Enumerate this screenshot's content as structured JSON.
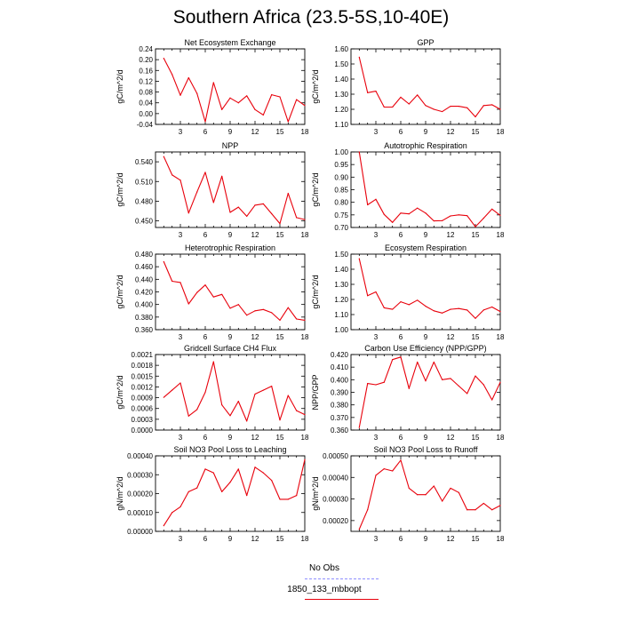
{
  "title": "Southern Africa (23.5-5S,10-40E)",
  "colors": {
    "model": "#e8000b",
    "obs": "#8f8fff",
    "axis": "#000000"
  },
  "legend": {
    "items": [
      {
        "label": "No Obs",
        "color": "#8f8fff",
        "style": "dashed"
      },
      {
        "label": "1850_133_mbbopt",
        "color": "#e8000b",
        "style": "solid"
      }
    ]
  },
  "chart_data": [
    {
      "type": "line",
      "title": "Net Ecosystem Exchange",
      "ylabel": "gC/m^2/d",
      "xlim": [
        0,
        18
      ],
      "xticks": [
        3,
        6,
        9,
        12,
        15,
        18
      ],
      "ylim": [
        -0.04,
        0.24
      ],
      "yticks": [
        "-0.04",
        "0.00",
        "0.04",
        "0.08",
        "0.12",
        "0.16",
        "0.20",
        "0.24"
      ],
      "series": [
        {
          "x": [
            1,
            2,
            3,
            4,
            5,
            6,
            7,
            8,
            9,
            10,
            11,
            12,
            13,
            14,
            15,
            16,
            17,
            18
          ],
          "y": [
            0.205,
            0.145,
            0.068,
            0.133,
            0.075,
            -0.03,
            0.115,
            0.015,
            0.058,
            0.04,
            0.066,
            0.015,
            -0.005,
            0.07,
            0.062,
            -0.03,
            0.052,
            0.03
          ]
        }
      ]
    },
    {
      "type": "line",
      "title": "GPP",
      "ylabel": "gC/m^2/d",
      "xlim": [
        0,
        18
      ],
      "xticks": [
        3,
        6,
        9,
        12,
        15,
        18
      ],
      "ylim": [
        1.1,
        1.6
      ],
      "yticks": [
        "1.10",
        "1.20",
        "1.30",
        "1.40",
        "1.50",
        "1.60"
      ],
      "series": [
        {
          "x": [
            1,
            2,
            3,
            4,
            5,
            6,
            7,
            8,
            9,
            10,
            11,
            12,
            13,
            14,
            15,
            16,
            17,
            18
          ],
          "y": [
            1.545,
            1.31,
            1.32,
            1.215,
            1.215,
            1.28,
            1.235,
            1.295,
            1.225,
            1.2,
            1.185,
            1.22,
            1.22,
            1.21,
            1.15,
            1.225,
            1.23,
            1.2
          ]
        }
      ]
    },
    {
      "type": "line",
      "title": "NPP",
      "ylabel": "gC/m^2/d",
      "xlim": [
        0,
        18
      ],
      "xticks": [
        3,
        6,
        9,
        12,
        15,
        18
      ],
      "ylim": [
        0.44,
        0.555
      ],
      "yticks": [
        "0.450",
        "0.480",
        "0.510",
        "0.540"
      ],
      "series": [
        {
          "x": [
            1,
            2,
            3,
            4,
            5,
            6,
            7,
            8,
            9,
            10,
            11,
            12,
            13,
            14,
            15,
            16,
            17,
            18
          ],
          "y": [
            0.548,
            0.52,
            0.512,
            0.462,
            0.494,
            0.524,
            0.478,
            0.518,
            0.463,
            0.471,
            0.457,
            0.474,
            0.476,
            0.461,
            0.446,
            0.492,
            0.455,
            0.452
          ]
        }
      ]
    },
    {
      "type": "line",
      "title": "Autotrophic Respiration",
      "ylabel": "gC/m^2/d",
      "xlim": [
        0,
        18
      ],
      "xticks": [
        3,
        6,
        9,
        12,
        15,
        18
      ],
      "ylim": [
        0.7,
        1.0
      ],
      "yticks": [
        "0.70",
        "0.75",
        "0.80",
        "0.85",
        "0.90",
        "0.95",
        "1.00"
      ],
      "series": [
        {
          "x": [
            1,
            2,
            3,
            4,
            5,
            6,
            7,
            8,
            9,
            10,
            11,
            12,
            13,
            14,
            15,
            16,
            17,
            18
          ],
          "y": [
            1.0,
            0.79,
            0.812,
            0.752,
            0.72,
            0.757,
            0.754,
            0.777,
            0.757,
            0.726,
            0.727,
            0.746,
            0.75,
            0.747,
            0.703,
            0.737,
            0.773,
            0.748
          ]
        }
      ]
    },
    {
      "type": "line",
      "title": "Heterotrophic Respiration",
      "ylabel": "gC/m^2/d",
      "xlim": [
        0,
        18
      ],
      "xticks": [
        3,
        6,
        9,
        12,
        15,
        18
      ],
      "ylim": [
        0.36,
        0.48
      ],
      "yticks": [
        "0.360",
        "0.380",
        "0.400",
        "0.420",
        "0.440",
        "0.460",
        "0.480"
      ],
      "series": [
        {
          "x": [
            1,
            2,
            3,
            4,
            5,
            6,
            7,
            8,
            9,
            10,
            11,
            12,
            13,
            14,
            15,
            16,
            17,
            18
          ],
          "y": [
            0.468,
            0.437,
            0.435,
            0.401,
            0.419,
            0.431,
            0.412,
            0.416,
            0.394,
            0.4,
            0.383,
            0.39,
            0.392,
            0.387,
            0.375,
            0.395,
            0.377,
            0.375
          ]
        }
      ]
    },
    {
      "type": "line",
      "title": "Ecosystem Respiration",
      "ylabel": "gC/m^2/d",
      "xlim": [
        0,
        18
      ],
      "xticks": [
        3,
        6,
        9,
        12,
        15,
        18
      ],
      "ylim": [
        1.0,
        1.5
      ],
      "yticks": [
        "1.00",
        "1.10",
        "1.20",
        "1.30",
        "1.40",
        "1.50"
      ],
      "series": [
        {
          "x": [
            1,
            2,
            3,
            4,
            5,
            6,
            7,
            8,
            9,
            10,
            11,
            12,
            13,
            14,
            15,
            16,
            17,
            18
          ],
          "y": [
            1.47,
            1.225,
            1.25,
            1.145,
            1.135,
            1.185,
            1.165,
            1.195,
            1.155,
            1.125,
            1.11,
            1.135,
            1.14,
            1.13,
            1.075,
            1.13,
            1.15,
            1.12
          ]
        }
      ]
    },
    {
      "type": "line",
      "title": "Gridcell Surface CH4 Flux",
      "ylabel": "gC/m^2/d",
      "xlim": [
        0,
        18
      ],
      "xticks": [
        3,
        6,
        9,
        12,
        15,
        18
      ],
      "ylim": [
        0.0,
        0.0021
      ],
      "yticks": [
        "0.0000",
        "0.0003",
        "0.0006",
        "0.0009",
        "0.0012",
        "0.0015",
        "0.0018",
        "0.0021"
      ],
      "series": [
        {
          "x": [
            1,
            2,
            3,
            4,
            5,
            6,
            7,
            8,
            9,
            10,
            11,
            12,
            13,
            14,
            15,
            16,
            17,
            18
          ],
          "y": [
            0.00091,
            0.00111,
            0.00131,
            0.00039,
            0.00057,
            0.00105,
            0.0019,
            0.0007,
            0.0004,
            0.0008,
            0.00025,
            0.001,
            0.00111,
            0.00122,
            0.00028,
            0.00096,
            0.00054,
            0.00043
          ]
        }
      ]
    },
    {
      "type": "line",
      "title": "Carbon Use Efficiency (NPP/GPP)",
      "ylabel": "NPP/GPP",
      "xlim": [
        0,
        18
      ],
      "xticks": [
        3,
        6,
        9,
        12,
        15,
        18
      ],
      "ylim": [
        0.36,
        0.42
      ],
      "yticks": [
        "0.360",
        "0.370",
        "0.380",
        "0.390",
        "0.400",
        "0.410",
        "0.420"
      ],
      "series": [
        {
          "x": [
            1,
            2,
            3,
            4,
            5,
            6,
            7,
            8,
            9,
            10,
            11,
            12,
            13,
            14,
            15,
            16,
            17,
            18
          ],
          "y": [
            0.362,
            0.397,
            0.396,
            0.398,
            0.416,
            0.418,
            0.393,
            0.414,
            0.399,
            0.414,
            0.4,
            0.401,
            0.395,
            0.389,
            0.403,
            0.396,
            0.384,
            0.398
          ]
        }
      ]
    },
    {
      "type": "line",
      "title": "Soil NO3 Pool Loss to Leaching",
      "ylabel": "gN/m^2/d",
      "xlim": [
        0,
        18
      ],
      "xticks": [
        3,
        6,
        9,
        12,
        15,
        18
      ],
      "ylim": [
        0.0,
        0.0004
      ],
      "yticks": [
        "0.00000",
        "0.00010",
        "0.00020",
        "0.00030",
        "0.00040"
      ],
      "series": [
        {
          "x": [
            1,
            2,
            3,
            4,
            5,
            6,
            7,
            8,
            9,
            10,
            11,
            12,
            13,
            14,
            15,
            16,
            17,
            18
          ],
          "y": [
            3e-05,
            0.0001,
            0.00013,
            0.00021,
            0.00023,
            0.00033,
            0.00031,
            0.00021,
            0.00026,
            0.00033,
            0.00019,
            0.00034,
            0.00031,
            0.00027,
            0.00017,
            0.00017,
            0.00019,
            0.00038
          ]
        }
      ]
    },
    {
      "type": "line",
      "title": "Soil NO3 Pool Loss to Runoff",
      "ylabel": "gN/m^2/d",
      "xlim": [
        0,
        18
      ],
      "xticks": [
        3,
        6,
        9,
        12,
        15,
        18
      ],
      "ylim": [
        0.00015,
        0.0005
      ],
      "yticks": [
        "0.00020",
        "0.00030",
        "0.00040",
        "0.00050"
      ],
      "series": [
        {
          "x": [
            1,
            2,
            3,
            4,
            5,
            6,
            7,
            8,
            9,
            10,
            11,
            12,
            13,
            14,
            15,
            16,
            17,
            18
          ],
          "y": [
            0.00016,
            0.00025,
            0.00041,
            0.00044,
            0.00043,
            0.00048,
            0.00035,
            0.00032,
            0.00032,
            0.00036,
            0.00029,
            0.00035,
            0.00033,
            0.00025,
            0.00025,
            0.00028,
            0.00025,
            0.00027
          ]
        }
      ]
    }
  ]
}
